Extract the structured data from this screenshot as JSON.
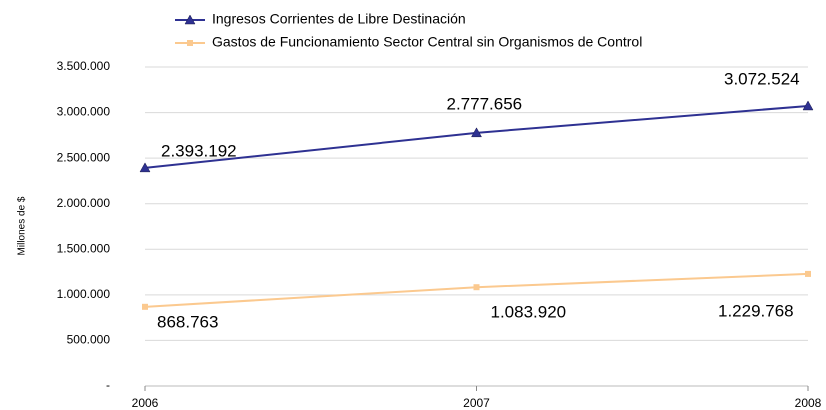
{
  "chart_data": {
    "type": "line",
    "y_label": "Millones de $",
    "categories": [
      "2006",
      "2007",
      "2008"
    ],
    "series": [
      {
        "name": "Ingresos Corrientes de Libre Destinación",
        "color": "#2e3192",
        "marker": "triangle",
        "values": [
          2393192,
          2777656,
          3072524
        ],
        "value_labels": [
          "2.393.192",
          "2.777.656",
          "3.072.524"
        ]
      },
      {
        "name": "Gastos de Funcionamiento Sector Central sin Organismos de Control",
        "color": "#fbc98f",
        "marker": "square",
        "values": [
          868763,
          1083920,
          1229768
        ],
        "value_labels": [
          "868.763",
          "1.083.920",
          "1.229.768"
        ]
      }
    ],
    "ylim": [
      0,
      3500000
    ],
    "yticks": [
      {
        "value": 0,
        "label": "-"
      },
      {
        "value": 500000,
        "label": "500.000"
      },
      {
        "value": 1000000,
        "label": "1.000.000"
      },
      {
        "value": 1500000,
        "label": "1.500.000"
      },
      {
        "value": 2000000,
        "label": "2.000.000"
      },
      {
        "value": 2500000,
        "label": "2.500.000"
      },
      {
        "value": 3000000,
        "label": "3.000.000"
      },
      {
        "value": 3500000,
        "label": "3.500.000"
      }
    ],
    "grid": true
  }
}
